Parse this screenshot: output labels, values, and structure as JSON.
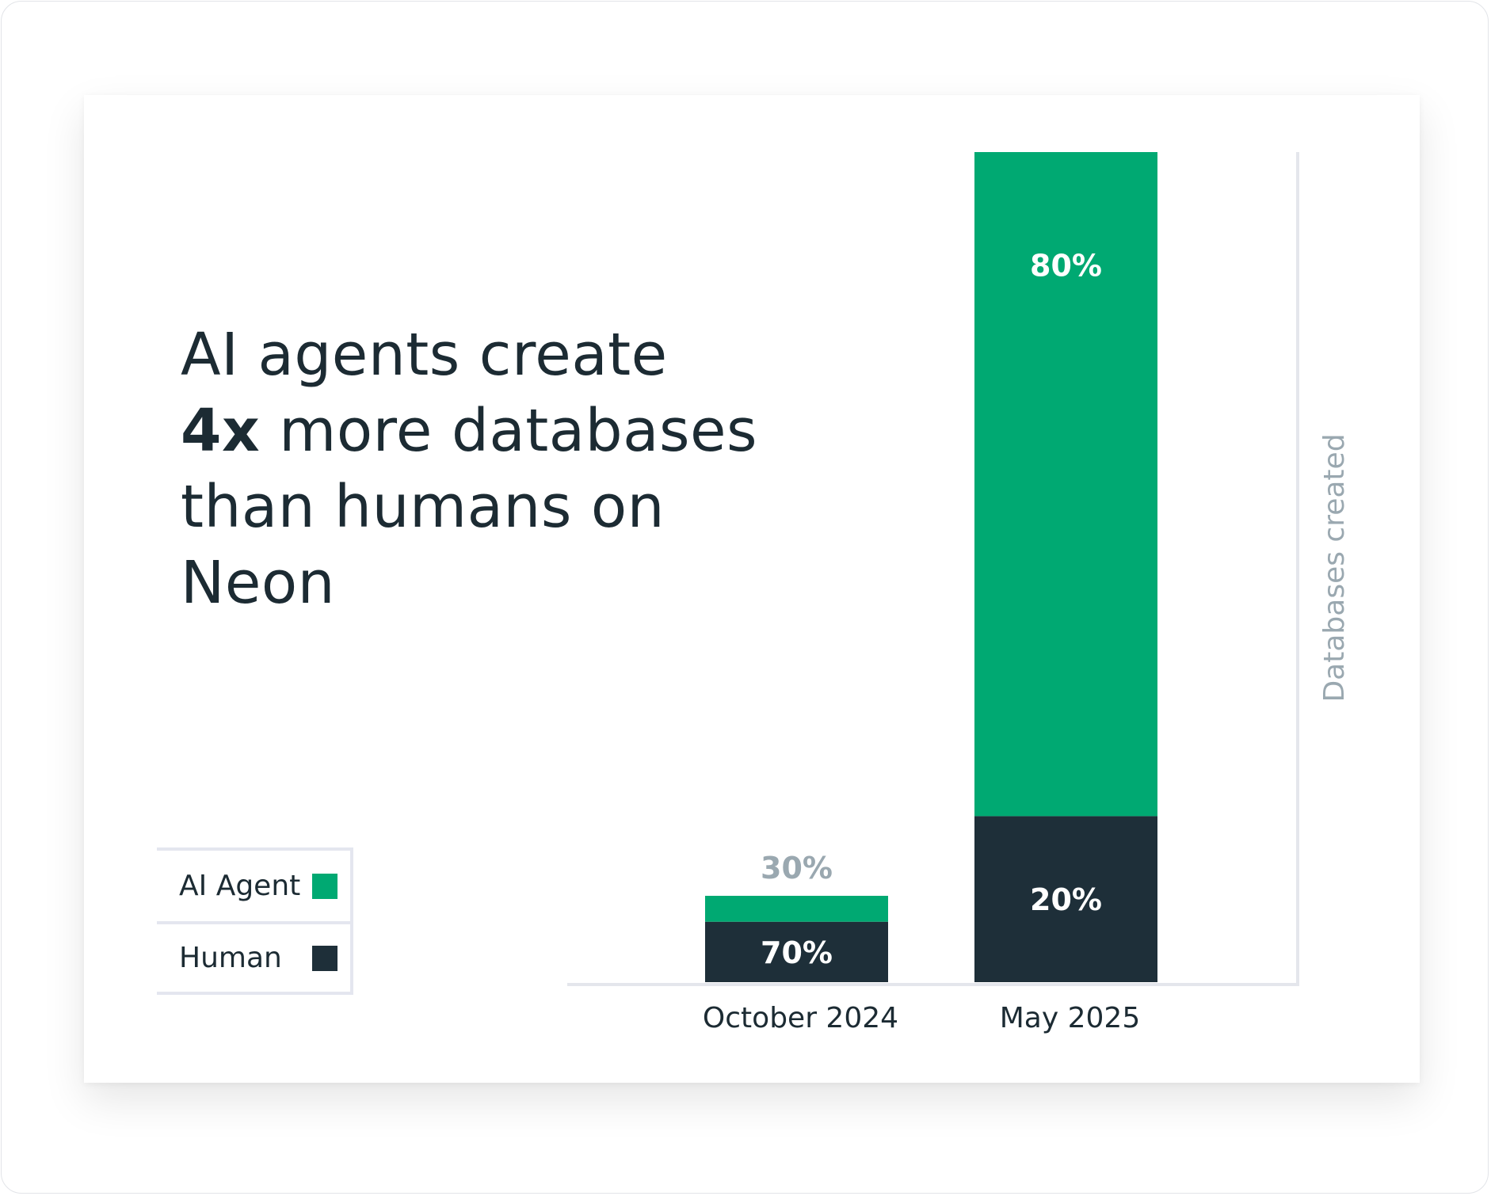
{
  "headline": {
    "line1": "AI agents create",
    "bold": "4x",
    "line2_rest": " more databases",
    "line3": "than humans on",
    "line4": "Neon"
  },
  "colors": {
    "ai_agent": "#00a972",
    "human": "#1e2f39",
    "axis": "#e4e6ec",
    "muted_label": "#9aa8b0",
    "text": "#1c2b33"
  },
  "chart_data": {
    "type": "bar",
    "stacked": true,
    "title": "",
    "xlabel": "",
    "ylabel": "Databases created",
    "categories": [
      "October 2024",
      "May 2025"
    ],
    "relative_totals": [
      10.4,
      100
    ],
    "series": [
      {
        "name": "Human",
        "values": [
          70,
          20
        ],
        "labels": [
          "70%",
          "20%"
        ]
      },
      {
        "name": "AI Agent",
        "values": [
          30,
          80
        ],
        "labels": [
          "30%",
          "80%"
        ]
      }
    ],
    "grid": false,
    "legend_placement": "bottom-left"
  },
  "legend": [
    {
      "label": "AI Agent",
      "color": "#00a972"
    },
    {
      "label": "Human",
      "color": "#1e2f39"
    }
  ]
}
